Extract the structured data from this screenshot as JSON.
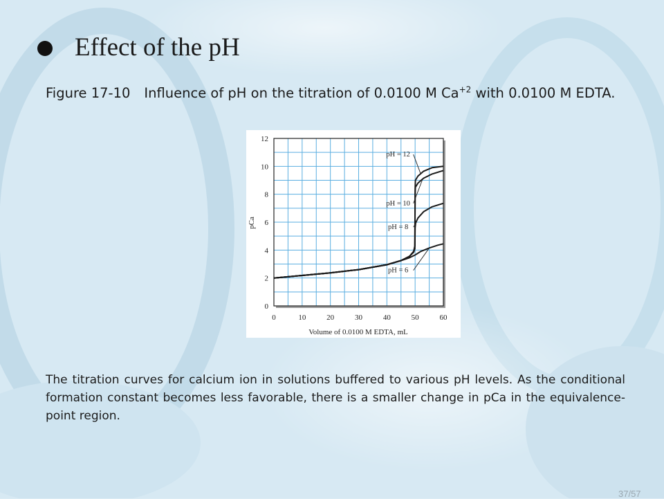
{
  "slide": {
    "title": "Effect of the pH",
    "caption": {
      "figure_label": "Figure 17-10",
      "text_before_sup": "Influence of pH on the titration of 0.0100 M Ca",
      "superscript": "+2",
      "text_after_sup": " with 0.0100 M EDTA."
    },
    "body": "The titration curves for calcium ion in solutions buffered to various pH levels. As the conditional formation constant becomes less favorable, there is a smaller change in pCa in the equivalence-point region.",
    "page_number": "37/57"
  },
  "chart_data": {
    "type": "line",
    "xlabel": "Volume of 0.0100 M EDTA, mL",
    "ylabel": "pCa",
    "xlim": [
      0,
      60
    ],
    "ylim": [
      0,
      12
    ],
    "xticks": [
      0,
      10,
      20,
      30,
      40,
      50,
      60
    ],
    "yticks": [
      0,
      2,
      4,
      6,
      8,
      10,
      12
    ],
    "grid": true,
    "grid_color": "#5aaee0",
    "series": [
      {
        "name": "pH = 12",
        "x": [
          0,
          10,
          20,
          30,
          40,
          45,
          48,
          49.5,
          49.9,
          50,
          50.1,
          51,
          53,
          56,
          60
        ],
        "y": [
          2.0,
          2.18,
          2.37,
          2.6,
          2.95,
          3.25,
          3.55,
          3.9,
          4.3,
          8.4,
          9.0,
          9.3,
          9.65,
          9.9,
          10.0
        ]
      },
      {
        "name": "pH = 10",
        "x": [
          0,
          10,
          20,
          30,
          40,
          45,
          48,
          49.5,
          49.9,
          50,
          50.1,
          51,
          53,
          56,
          60
        ],
        "y": [
          2.0,
          2.18,
          2.37,
          2.6,
          2.95,
          3.25,
          3.55,
          3.9,
          4.3,
          8.0,
          8.5,
          8.8,
          9.15,
          9.45,
          9.7
        ]
      },
      {
        "name": "pH = 8",
        "x": [
          0,
          10,
          20,
          30,
          40,
          45,
          48,
          49.5,
          49.9,
          50,
          50.2,
          51,
          53,
          56,
          60
        ],
        "y": [
          2.0,
          2.18,
          2.37,
          2.6,
          2.95,
          3.25,
          3.55,
          3.85,
          4.1,
          5.6,
          5.95,
          6.3,
          6.75,
          7.1,
          7.35
        ]
      },
      {
        "name": "pH = 6",
        "x": [
          0,
          10,
          20,
          30,
          40,
          45,
          48,
          50,
          52,
          55,
          58,
          60
        ],
        "y": [
          2.0,
          2.18,
          2.37,
          2.6,
          2.95,
          3.25,
          3.45,
          3.65,
          3.9,
          4.15,
          4.35,
          4.45
        ]
      }
    ],
    "annotations": [
      {
        "text": "pH = 12",
        "label_at": [
          44,
          10.7
        ],
        "points_to": [
          52,
          9.45
        ]
      },
      {
        "text": "pH = 10",
        "label_at": [
          44,
          7.2
        ],
        "points_to": [
          52.5,
          9.0
        ]
      },
      {
        "text": "pH = 8",
        "label_at": [
          44,
          5.5
        ],
        "points_to": [
          50.5,
          6.0
        ]
      },
      {
        "text": "pH = 6",
        "label_at": [
          44,
          2.4
        ],
        "points_to": [
          55,
          4.15
        ]
      }
    ]
  }
}
